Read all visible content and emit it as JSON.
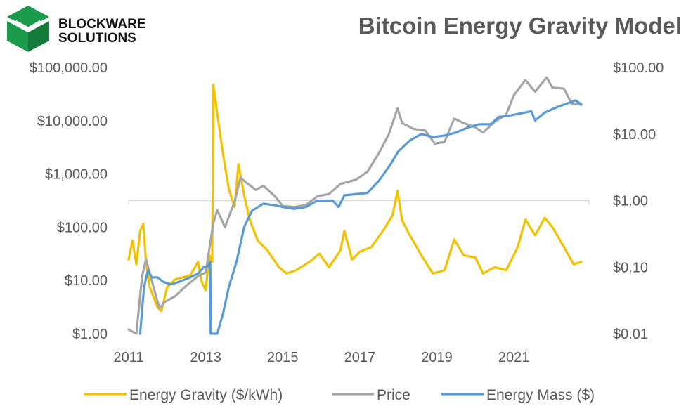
{
  "brand": {
    "name_line1": "BLOCKWARE",
    "name_line2": "SOLUTIONS",
    "logo_color": "#1a9a4a"
  },
  "chart_data": {
    "type": "line",
    "title": "Bitcoin Energy Gravity Model",
    "x_ticks": [
      "2011",
      "2013",
      "2015",
      "2017",
      "2019",
      "2021"
    ],
    "xlim": [
      2011,
      2022.95
    ],
    "y_left": {
      "scale": "log",
      "range": [
        1,
        100000
      ],
      "ticks": [
        "$100,000.00",
        "$10,000.00",
        "$1,000.00",
        "$100.00",
        "$10.00",
        "$1.00"
      ]
    },
    "y_right": {
      "scale": "log",
      "range": [
        0.01,
        100
      ],
      "ticks": [
        "$100.00",
        "$10.00",
        "$1.00",
        "$0.10",
        "$0.01"
      ]
    },
    "legend_position": "bottom",
    "series": [
      {
        "name": "Energy Gravity ($/kWh)",
        "axis": "right",
        "color": "#f2c200",
        "points": [
          [
            2011.0,
            0.13
          ],
          [
            2011.1,
            0.25
          ],
          [
            2011.2,
            0.11
          ],
          [
            2011.3,
            0.35
          ],
          [
            2011.38,
            0.45
          ],
          [
            2011.45,
            0.12
          ],
          [
            2011.55,
            0.05
          ],
          [
            2011.65,
            0.035
          ],
          [
            2011.75,
            0.025
          ],
          [
            2011.85,
            0.022
          ],
          [
            2012.0,
            0.05
          ],
          [
            2012.2,
            0.065
          ],
          [
            2012.4,
            0.07
          ],
          [
            2012.6,
            0.075
          ],
          [
            2012.8,
            0.12
          ],
          [
            2012.9,
            0.06
          ],
          [
            2013.0,
            0.045
          ],
          [
            2013.1,
            0.15
          ],
          [
            2013.17,
            0.12
          ],
          [
            2013.2,
            55
          ],
          [
            2013.3,
            20
          ],
          [
            2013.45,
            5
          ],
          [
            2013.6,
            1.5
          ],
          [
            2013.75,
            0.8
          ],
          [
            2013.85,
            3.5
          ],
          [
            2014.0,
            1.2
          ],
          [
            2014.15,
            0.5
          ],
          [
            2014.35,
            0.25
          ],
          [
            2014.6,
            0.18
          ],
          [
            2014.9,
            0.1
          ],
          [
            2015.1,
            0.08
          ],
          [
            2015.35,
            0.09
          ],
          [
            2015.7,
            0.12
          ],
          [
            2015.95,
            0.16
          ],
          [
            2016.2,
            0.1
          ],
          [
            2016.5,
            0.18
          ],
          [
            2016.6,
            0.35
          ],
          [
            2016.8,
            0.13
          ],
          [
            2017.0,
            0.17
          ],
          [
            2017.3,
            0.2
          ],
          [
            2017.6,
            0.35
          ],
          [
            2017.85,
            0.6
          ],
          [
            2017.98,
            1.4
          ],
          [
            2018.1,
            0.5
          ],
          [
            2018.3,
            0.3
          ],
          [
            2018.6,
            0.15
          ],
          [
            2018.9,
            0.08
          ],
          [
            2019.2,
            0.09
          ],
          [
            2019.45,
            0.26
          ],
          [
            2019.7,
            0.15
          ],
          [
            2020.0,
            0.14
          ],
          [
            2020.2,
            0.08
          ],
          [
            2020.5,
            0.1
          ],
          [
            2020.8,
            0.09
          ],
          [
            2021.1,
            0.2
          ],
          [
            2021.3,
            0.52
          ],
          [
            2021.55,
            0.3
          ],
          [
            2021.8,
            0.55
          ],
          [
            2022.0,
            0.4
          ],
          [
            2022.3,
            0.2
          ],
          [
            2022.55,
            0.11
          ],
          [
            2022.75,
            0.12
          ]
        ]
      },
      {
        "name": "Price",
        "axis": "left",
        "color": "#a5a5a5",
        "points": [
          [
            2011.0,
            1.2
          ],
          [
            2011.2,
            1.0
          ],
          [
            2011.35,
            12
          ],
          [
            2011.45,
            25
          ],
          [
            2011.6,
            10
          ],
          [
            2011.8,
            3
          ],
          [
            2011.95,
            4
          ],
          [
            2012.2,
            5
          ],
          [
            2012.5,
            8
          ],
          [
            2012.8,
            12
          ],
          [
            2013.0,
            14
          ],
          [
            2013.2,
            120
          ],
          [
            2013.3,
            210
          ],
          [
            2013.5,
            100
          ],
          [
            2013.75,
            300
          ],
          [
            2013.9,
            850
          ],
          [
            2014.1,
            650
          ],
          [
            2014.3,
            500
          ],
          [
            2014.5,
            600
          ],
          [
            2014.8,
            380
          ],
          [
            2015.0,
            250
          ],
          [
            2015.3,
            240
          ],
          [
            2015.6,
            260
          ],
          [
            2015.9,
            380
          ],
          [
            2016.2,
            420
          ],
          [
            2016.5,
            650
          ],
          [
            2016.9,
            780
          ],
          [
            2017.2,
            1100
          ],
          [
            2017.5,
            2500
          ],
          [
            2017.75,
            5500
          ],
          [
            2017.98,
            17000
          ],
          [
            2018.1,
            9000
          ],
          [
            2018.4,
            7000
          ],
          [
            2018.7,
            6500
          ],
          [
            2018.95,
            3700
          ],
          [
            2019.2,
            4000
          ],
          [
            2019.45,
            11000
          ],
          [
            2019.7,
            9000
          ],
          [
            2020.0,
            7500
          ],
          [
            2020.2,
            6000
          ],
          [
            2020.5,
            9500
          ],
          [
            2020.8,
            13000
          ],
          [
            2021.0,
            30000
          ],
          [
            2021.3,
            58000
          ],
          [
            2021.55,
            35000
          ],
          [
            2021.85,
            65000
          ],
          [
            2022.0,
            42000
          ],
          [
            2022.3,
            40000
          ],
          [
            2022.5,
            21000
          ],
          [
            2022.75,
            20000
          ]
        ]
      },
      {
        "name": "Energy Mass ($)",
        "axis": "right",
        "color": "#5b9bd5",
        "points": [
          [
            2011.3,
            0.01
          ],
          [
            2011.4,
            0.05
          ],
          [
            2011.5,
            0.09
          ],
          [
            2011.6,
            0.07
          ],
          [
            2011.75,
            0.07
          ],
          [
            2011.9,
            0.06
          ],
          [
            2012.1,
            0.055
          ],
          [
            2012.3,
            0.06
          ],
          [
            2012.6,
            0.07
          ],
          [
            2012.8,
            0.08
          ],
          [
            2012.95,
            0.1
          ],
          [
            2013.05,
            0.1
          ],
          [
            2013.12,
            0.12
          ],
          [
            2013.13,
            0.01
          ],
          [
            2013.3,
            0.01
          ],
          [
            2013.45,
            0.02
          ],
          [
            2013.6,
            0.05
          ],
          [
            2013.8,
            0.12
          ],
          [
            2014.0,
            0.4
          ],
          [
            2014.2,
            0.7
          ],
          [
            2014.5,
            0.9
          ],
          [
            2014.8,
            0.85
          ],
          [
            2015.0,
            0.8
          ],
          [
            2015.3,
            0.75
          ],
          [
            2015.6,
            0.8
          ],
          [
            2015.9,
            1.0
          ],
          [
            2016.3,
            1.0
          ],
          [
            2016.45,
            0.8
          ],
          [
            2016.6,
            1.2
          ],
          [
            2016.9,
            1.25
          ],
          [
            2017.2,
            1.3
          ],
          [
            2017.5,
            2.0
          ],
          [
            2017.8,
            3.5
          ],
          [
            2018.0,
            5.5
          ],
          [
            2018.3,
            8
          ],
          [
            2018.6,
            10
          ],
          [
            2018.9,
            9
          ],
          [
            2019.2,
            9.5
          ],
          [
            2019.5,
            10.5
          ],
          [
            2019.8,
            12.5
          ],
          [
            2020.1,
            14
          ],
          [
            2020.4,
            14
          ],
          [
            2020.6,
            18
          ],
          [
            2020.9,
            19
          ],
          [
            2021.2,
            20.5
          ],
          [
            2021.45,
            22
          ],
          [
            2021.55,
            16
          ],
          [
            2021.8,
            21
          ],
          [
            2022.1,
            25
          ],
          [
            2022.4,
            29
          ],
          [
            2022.6,
            32
          ],
          [
            2022.75,
            28
          ]
        ]
      }
    ]
  }
}
